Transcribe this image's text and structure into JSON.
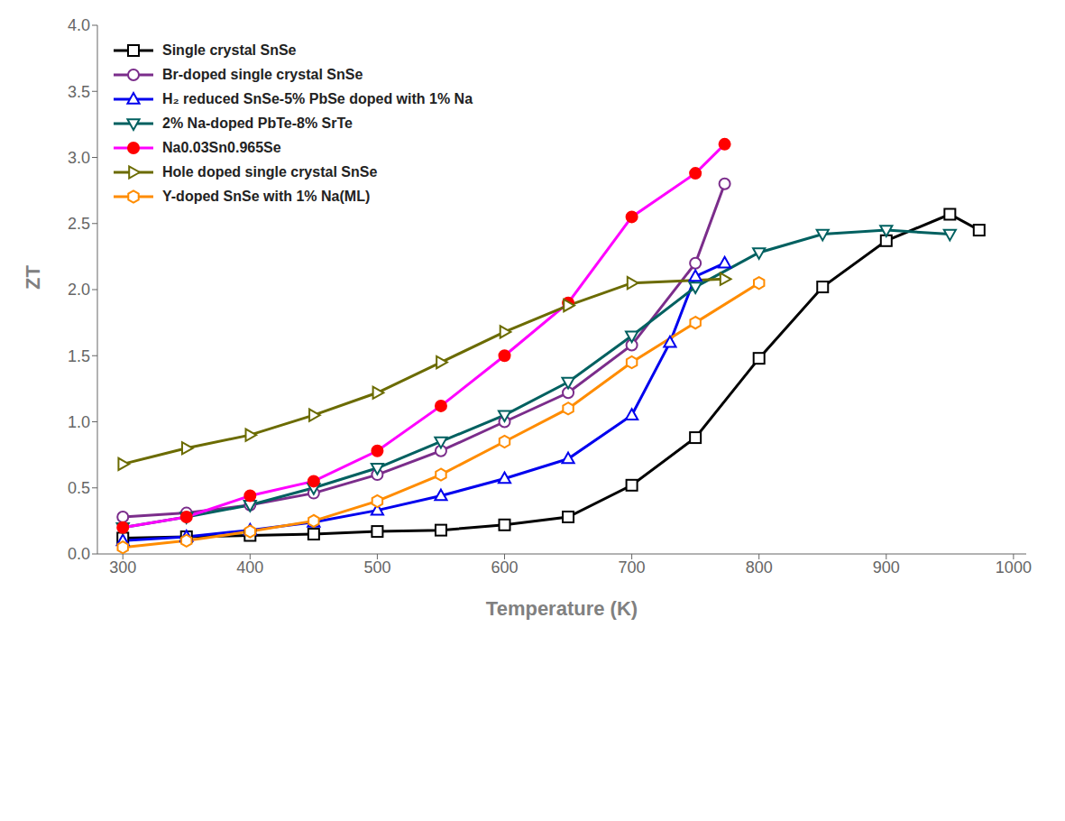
{
  "chart_data": {
    "type": "line",
    "x_label": "Temperature (K)",
    "y_label": "ZT",
    "xlim": [
      280,
      1010
    ],
    "ylim": [
      0.0,
      4.0
    ],
    "xticks": [
      300,
      400,
      500,
      600,
      700,
      800,
      900,
      1000
    ],
    "yticks": [
      {
        "value": 0.0,
        "label": "0.0"
      },
      0.5,
      {
        "value": 1.0,
        "label": "1.0"
      },
      1.5,
      {
        "value": 2.0,
        "label": "2.0"
      },
      2.5,
      {
        "value": 3.0,
        "label": "3.0"
      },
      3.5,
      {
        "value": 4.0,
        "label": "4.0"
      }
    ],
    "grid": false,
    "legend": "upper left",
    "series": [
      {
        "name": "Single crystal SnSe",
        "color": "#000000",
        "marker": "square",
        "x": [
          300,
          350,
          400,
          450,
          500,
          550,
          600,
          650,
          700,
          750,
          800,
          850,
          900,
          950,
          973
        ],
        "values": [
          0.12,
          0.13,
          0.14,
          0.15,
          0.17,
          0.18,
          0.22,
          0.28,
          0.52,
          0.88,
          1.48,
          2.02,
          2.37,
          2.57,
          2.45
        ]
      },
      {
        "name": "Br-doped single crystal SnSe",
        "color": "#7B2D8B",
        "marker": "circle",
        "x": [
          300,
          350,
          400,
          450,
          500,
          550,
          600,
          650,
          700,
          750,
          773
        ],
        "values": [
          0.28,
          0.31,
          0.37,
          0.46,
          0.6,
          0.78,
          1.0,
          1.22,
          1.58,
          2.2,
          2.8
        ]
      },
      {
        "name": "H₂ reduced SnSe-5% PbSe doped with 1% Na",
        "color": "#0000EE",
        "marker": "triangle_up",
        "x": [
          300,
          350,
          400,
          450,
          500,
          550,
          600,
          650,
          700,
          730,
          750,
          773
        ],
        "values": [
          0.1,
          0.13,
          0.18,
          0.24,
          0.33,
          0.44,
          0.57,
          0.72,
          1.05,
          1.6,
          2.1,
          2.2
        ]
      },
      {
        "name": "2% Na-doped PbTe-8% SrTe",
        "color": "#006060",
        "marker": "triangle_down",
        "x": [
          300,
          350,
          400,
          450,
          500,
          550,
          600,
          650,
          700,
          750,
          800,
          850,
          900,
          950
        ],
        "values": [
          0.2,
          0.28,
          0.37,
          0.5,
          0.65,
          0.85,
          1.05,
          1.3,
          1.65,
          2.02,
          2.28,
          2.42,
          2.45,
          2.42
        ]
      },
      {
        "name": "Na0.03Sn0.965Se",
        "color": "#FF00FF",
        "marker": "circle",
        "colors": [
          "#FF0000",
          "#FF0000",
          "#FF0000",
          "#FF0000",
          "#FF0000",
          "#FF0000",
          "#FF0000",
          "#FF0000",
          "#FF0000",
          "#FF0000",
          "#FF0000"
        ],
        "x": [
          300,
          350,
          400,
          450,
          500,
          550,
          600,
          650,
          700,
          750,
          773
        ],
        "values": [
          0.2,
          0.28,
          0.44,
          0.55,
          0.78,
          1.12,
          1.5,
          1.9,
          2.55,
          2.88,
          3.1
        ]
      },
      {
        "name": "Hole doped single crystal SnSe",
        "color": "#6B6B00",
        "marker": "triangle_right",
        "x": [
          300,
          350,
          400,
          450,
          500,
          550,
          600,
          650,
          700,
          773
        ],
        "values": [
          0.68,
          0.8,
          0.9,
          1.05,
          1.22,
          1.45,
          1.68,
          1.88,
          2.05,
          2.08
        ]
      },
      {
        "name": "Y-doped SnSe with 1% Na(ML)",
        "color": "#FF8C00",
        "marker": "hexagon",
        "x": [
          300,
          350,
          400,
          450,
          500,
          550,
          600,
          650,
          700,
          750,
          800
        ],
        "values": [
          0.05,
          0.1,
          0.17,
          0.25,
          0.4,
          0.6,
          0.85,
          1.1,
          1.45,
          1.75,
          2.05
        ]
      }
    ]
  }
}
